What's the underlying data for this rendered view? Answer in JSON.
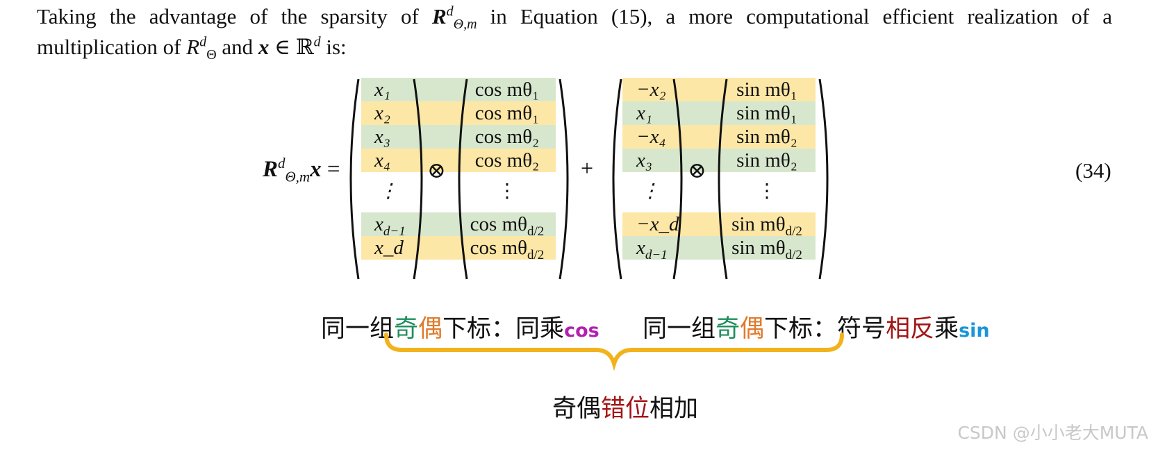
{
  "paragraph": {
    "line1_a": "Taking the advantage of the sparsity of ",
    "line1_b": " in Equation (15), a more computational efficient realization of a",
    "line2_a": "multiplication of ",
    "line2_b": " and ",
    "line2_c": " ∈ ℝ",
    "line2_d": " is:"
  },
  "symbols": {
    "R": "R",
    "x": "x",
    "sup_d": "d",
    "sub_theta_m": "Θ,m",
    "sub_theta": "Θ",
    "equals": "=",
    "otimes": "⊗",
    "plus": "+"
  },
  "equation_number": "(34)",
  "matrix1": [
    "x₁",
    "x₂",
    "x₃",
    "x₄",
    "⋮",
    "x_{d−1}",
    "x_d"
  ],
  "matrix2": [
    "cos mθ₁",
    "cos mθ₁",
    "cos mθ₂",
    "cos mθ₂",
    "⋮",
    "cos mθ_{d/2}",
    "cos mθ_{d/2}"
  ],
  "matrix3": [
    "−x₂",
    "x₁",
    "−x₄",
    "x₃",
    "⋮",
    "−x_d",
    "x_{d−1}"
  ],
  "matrix4": [
    "sin mθ₁",
    "sin mθ₁",
    "sin mθ₂",
    "sin mθ₂",
    "⋮",
    "sin mθ_{d/2}",
    "sin mθ_{d/2}"
  ],
  "caption_left": {
    "prefix": "同一组",
    "odd": "奇",
    "even": "偶",
    "mid": "下标：同乘",
    "fn": "cos"
  },
  "caption_right": {
    "prefix": "同一组",
    "odd": "奇",
    "even": "偶",
    "mid": "下标：符号",
    "opposite": "相反",
    "mult": "乘",
    "fn": "sin"
  },
  "caption_bottom": {
    "a": "奇偶",
    "b": "错位",
    "c": "相加"
  },
  "watermark": "CSDN @小小老大MUTA",
  "colors": {
    "green_band": "#d7e7cd",
    "yellow_band": "#fde7a6",
    "brace": "#f2b21c",
    "odd_green": "#1e8e5a",
    "even_orange": "#e07a2a",
    "dark_red": "#a31515",
    "cos_magenta": "#b21fb0",
    "sin_blue": "#1a95d6"
  }
}
